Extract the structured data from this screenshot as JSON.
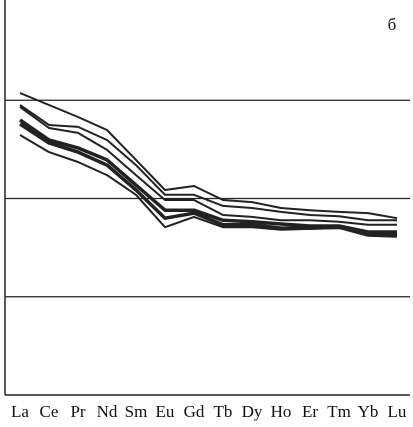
{
  "chart_data": {
    "type": "line",
    "annotation": "б",
    "categories": [
      "La",
      "Ce",
      "Pr",
      "Nd",
      "Sm",
      "Eu",
      "Gd",
      "Tb",
      "Dy",
      "Ho",
      "Er",
      "Tm",
      "Yb",
      "Lu"
    ],
    "log_scale": true,
    "grid": true,
    "ylim": [
      1,
      10000
    ],
    "yticks": [
      10,
      100,
      1000
    ],
    "series": [
      {
        "color": "#222222",
        "width": 2,
        "values": [
          1186,
          895,
          676,
          498,
          247,
          122,
          134,
          96.5,
          92,
          80,
          76,
          73,
          71,
          63
        ]
      },
      {
        "color": "#222222",
        "width": 2,
        "values": [
          895,
          560,
          535,
          394,
          219,
          109,
          109,
          84,
          80,
          73,
          68,
          66,
          60,
          60
        ]
      },
      {
        "color": "#222222",
        "width": 2,
        "values": [
          853,
          522,
          465,
          312,
          173,
          96.5,
          96.5,
          68,
          65,
          60,
          60,
          58,
          54,
          54
        ]
      },
      {
        "color": "#222222",
        "width": 3.5,
        "values": [
          630,
          394,
          327,
          247,
          137,
          76,
          76,
          60,
          58,
          55,
          52.5,
          52.5,
          45.6,
          45.6
        ]
      },
      {
        "color": "#222222",
        "width": 3.5,
        "values": [
          573,
          367,
          297,
          219,
          122,
          63,
          71,
          54,
          54,
          50,
          50,
          51,
          42.5,
          41.5
        ]
      },
      {
        "color": "#222222",
        "width": 2,
        "values": [
          443,
          297,
          235,
          173,
          109,
          51,
          65,
          51,
          51,
          48,
          49,
          50,
          44.6,
          43.5
        ]
      }
    ]
  }
}
